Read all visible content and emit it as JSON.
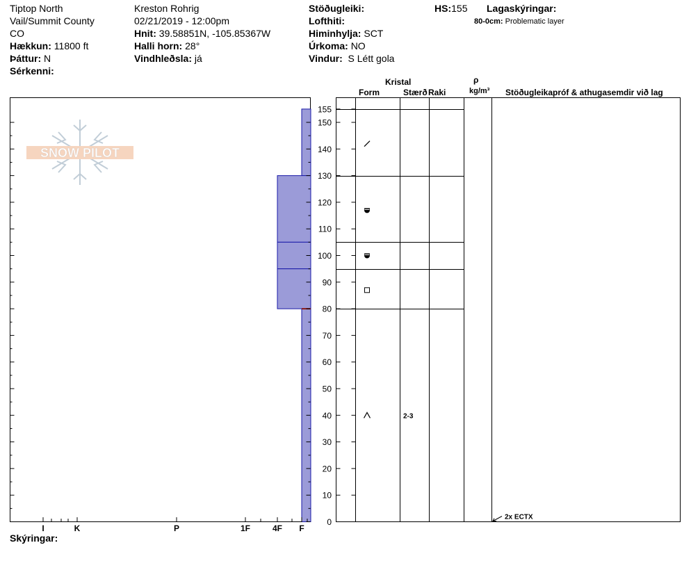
{
  "header": {
    "location": "Tiptop North",
    "region": "Vail/Summit County",
    "state": "CO",
    "elevation_label": "Hækkun:",
    "elevation_value": "11800 ft",
    "aspect_label": "Þáttur:",
    "aspect_value": "N",
    "specifics_label": "Sérkenni:",
    "observer": "Kreston Rohrig",
    "datetime": "02/21/2019 - 12:00pm",
    "coords_label": "Hnit:",
    "coords_value": "39.58851N, -105.85367W",
    "slope_label": "Halli horn:",
    "slope_value": "28°",
    "wind_loading_label": "Vindhleðsla:",
    "wind_loading_value": "já",
    "stability_label": "Stöðugleiki:",
    "air_temp_label": "Lofthiti:",
    "sky_label": "Himinhylja:",
    "sky_value": "SCT",
    "precip_label": "Úrkoma:",
    "precip_value": "NO",
    "wind_label": "Vindur:",
    "wind_value": "S Létt gola",
    "hs_label": "HS:",
    "hs_value": "155",
    "layer_notes_label": "Lagaskýringar:",
    "layer_note_range": "80-0cm:",
    "layer_note_text": "Problematic layer"
  },
  "columns": {
    "crystal": "Kristal",
    "form": "Form",
    "size": "Stærð",
    "moisture": "Raki",
    "rho": "ρ",
    "density_unit": "kg/m³",
    "tests": "Stöðugleikapróf & athugasemdir við lag"
  },
  "footer": {
    "notes_label": "Skýringar:"
  },
  "logo": {
    "text": "SNOW PILOT"
  },
  "chart_data": {
    "type": "snow-profile",
    "depth_range": [
      0,
      155
    ],
    "depth_ticks": [
      "0",
      "10",
      "20",
      "30",
      "40",
      "50",
      "60",
      "70",
      "80",
      "90",
      "100",
      "110",
      "120",
      "130",
      "140",
      "150",
      "155"
    ],
    "hardness_scale": [
      "I",
      "K",
      "P",
      "1F",
      "4F",
      "F"
    ],
    "hardness_layers": [
      {
        "top": 155,
        "bottom": 130,
        "hardness": "F"
      },
      {
        "top": 130,
        "bottom": 105,
        "hardness": "4F"
      },
      {
        "top": 105,
        "bottom": 95,
        "hardness": "4F"
      },
      {
        "top": 95,
        "bottom": 80,
        "hardness": "4F"
      },
      {
        "top": 80,
        "bottom": 0,
        "hardness": "F"
      }
    ],
    "layer_boundaries": [
      155,
      130,
      105,
      95,
      80
    ],
    "grain_forms": [
      {
        "depth": 142,
        "form": "precipitation-particle"
      },
      {
        "depth": 117,
        "form": "rounded-faceted"
      },
      {
        "depth": 100,
        "form": "rounded-faceted"
      },
      {
        "depth": 87,
        "form": "faceted"
      },
      {
        "depth": 40,
        "form": "depth-hoar",
        "size": "2-3"
      }
    ],
    "tests": [
      {
        "depth": 0,
        "text": "2x ECTX"
      }
    ]
  }
}
